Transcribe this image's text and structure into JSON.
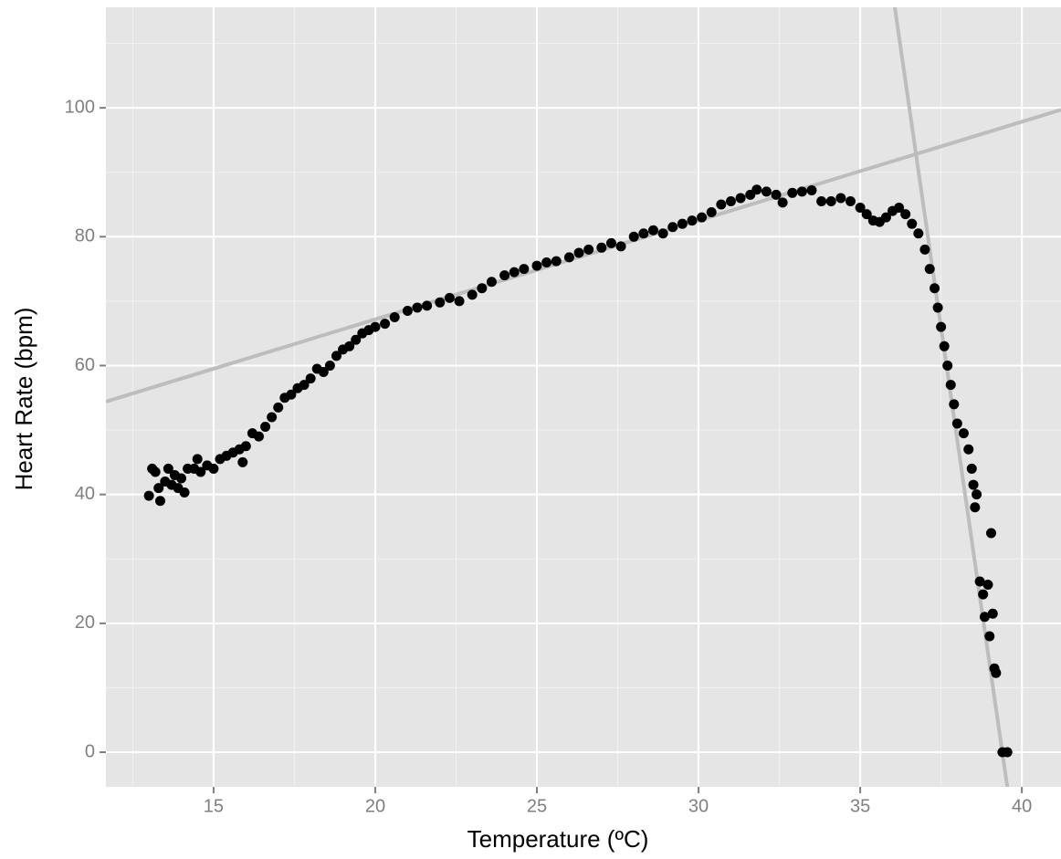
{
  "chart_data": {
    "type": "scatter",
    "x_label": "Temperature (ºC)",
    "y_label": "Heart Rate (bpm)",
    "x": [
      13.0,
      13.1,
      13.2,
      13.3,
      13.35,
      13.5,
      13.6,
      13.7,
      13.8,
      13.9,
      14.0,
      14.1,
      14.2,
      14.4,
      14.5,
      14.6,
      14.8,
      15.0,
      15.2,
      15.4,
      15.6,
      15.8,
      15.9,
      16.0,
      16.2,
      16.4,
      16.6,
      16.8,
      17.0,
      17.2,
      17.4,
      17.6,
      17.8,
      18.0,
      18.2,
      18.4,
      18.6,
      18.8,
      19.0,
      19.2,
      19.4,
      19.6,
      19.8,
      20.0,
      20.3,
      20.6,
      21.0,
      21.3,
      21.6,
      22.0,
      22.3,
      22.6,
      23.0,
      23.3,
      23.6,
      24.0,
      24.3,
      24.6,
      25.0,
      25.3,
      25.6,
      26.0,
      26.3,
      26.6,
      27.0,
      27.3,
      27.6,
      28.0,
      28.3,
      28.6,
      28.9,
      29.2,
      29.5,
      29.8,
      30.1,
      30.4,
      30.7,
      31.0,
      31.3,
      31.6,
      31.8,
      32.1,
      32.4,
      32.6,
      32.9,
      33.2,
      33.5,
      33.8,
      34.1,
      34.4,
      34.7,
      35.0,
      35.2,
      35.4,
      35.6,
      35.8,
      36.0,
      36.2,
      36.4,
      36.6,
      36.8,
      37.0,
      37.15,
      37.3,
      37.4,
      37.5,
      37.6,
      37.7,
      37.8,
      37.9,
      38.0,
      38.2,
      38.35,
      38.45,
      38.5,
      38.55,
      38.6,
      38.7,
      38.8,
      38.85,
      38.95,
      39.0,
      39.05,
      39.1,
      39.15,
      39.2,
      39.4,
      39.55
    ],
    "values": [
      39.8,
      44,
      43.5,
      41,
      39,
      42,
      44,
      41.5,
      43,
      41,
      42.5,
      40.3,
      44,
      44,
      45.5,
      43.5,
      44.5,
      44,
      45.5,
      46,
      46.5,
      47,
      45,
      47.5,
      49.5,
      49,
      50.5,
      52,
      53.5,
      55,
      55.5,
      56.5,
      57,
      58,
      59.5,
      59,
      60,
      61.5,
      62.5,
      63,
      64,
      65,
      65.5,
      66,
      66.5,
      67.5,
      68.5,
      69,
      69.3,
      69.8,
      70.5,
      70,
      71,
      72,
      73,
      74,
      74.5,
      75,
      75.5,
      76,
      76.2,
      76.8,
      77.5,
      78,
      78.3,
      79,
      78.5,
      80,
      80.5,
      81,
      80.5,
      81.5,
      82,
      82.5,
      83,
      83.8,
      85,
      85.5,
      86,
      86.5,
      87.3,
      87,
      86.5,
      85.3,
      86.8,
      87,
      87.2,
      85.5,
      85.5,
      86,
      85.5,
      84.5,
      83.5,
      82.5,
      82.3,
      83,
      84,
      84.5,
      83.5,
      82,
      80.5,
      78,
      75,
      72,
      69,
      66,
      63,
      60,
      57,
      54,
      51,
      49.5,
      47,
      44,
      41.5,
      38,
      40,
      26.5,
      24.5,
      21,
      26,
      18,
      34,
      21.5,
      13,
      12.3,
      0,
      0
    ],
    "color": "#000000",
    "lines": [
      {
        "x": [
          11.67,
          41.21
        ],
        "values": [
          54.4,
          99.7
        ],
        "color": "#bdbdbd"
      },
      {
        "x": [
          36.07,
          39.55
        ],
        "values": [
          115.6,
          -5.4
        ],
        "color": "#bdbdbd"
      }
    ],
    "xlim": [
      11.67,
      41.21
    ],
    "ylim": [
      -5.38,
      115.6
    ],
    "xticks": [
      15,
      20,
      25,
      30,
      35,
      40
    ],
    "yticks": [
      0,
      20,
      40,
      60,
      80,
      100
    ],
    "xminor": [
      12.5,
      17.5,
      22.5,
      27.5,
      32.5,
      37.5
    ],
    "yminor": [
      10,
      30,
      50,
      70,
      90,
      110
    ],
    "grid": true
  }
}
